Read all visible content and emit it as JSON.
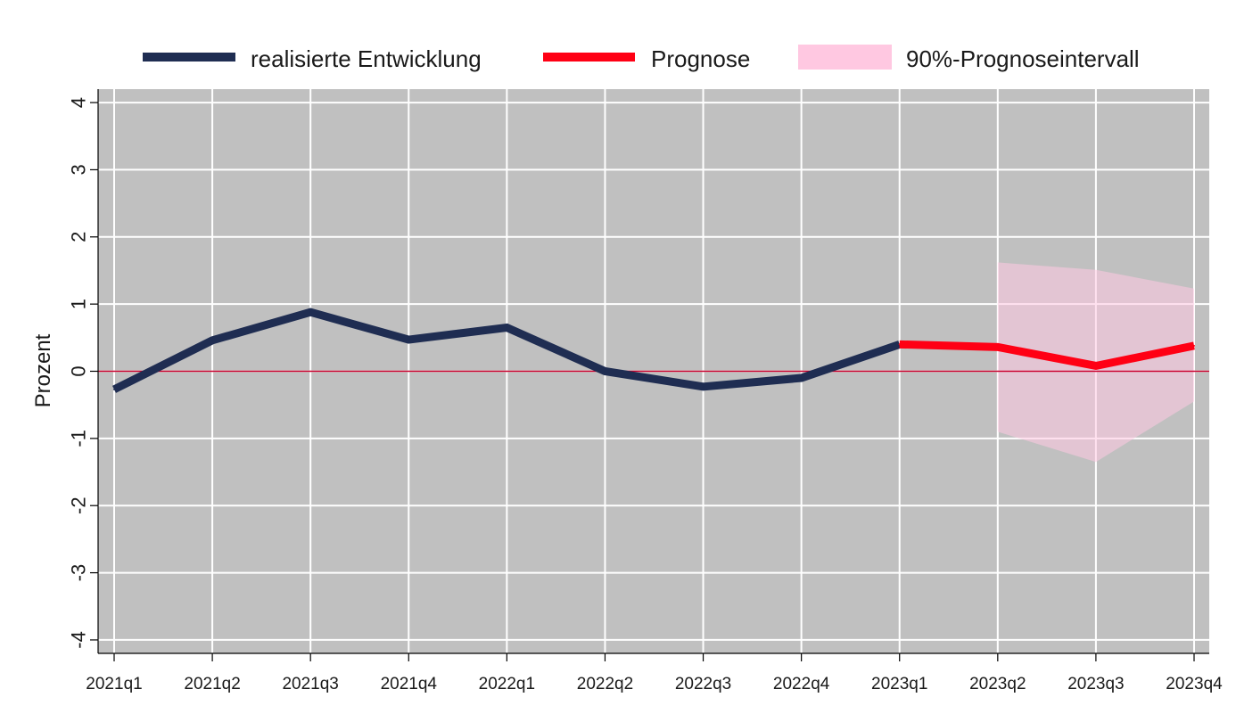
{
  "chart_data": {
    "type": "line",
    "title": "",
    "xlabel": "",
    "ylabel": "Prozent",
    "ylim": [
      -4.2,
      4.2
    ],
    "yticks": [
      -4,
      -3,
      -2,
      -1,
      0,
      1,
      2,
      3,
      4
    ],
    "ytick_labels": [
      "-4",
      "-3",
      "-2",
      "-1",
      "0",
      "1",
      "2",
      "3",
      "4"
    ],
    "categories": [
      "2021q1",
      "2021q2",
      "2021q3",
      "2021q4",
      "2022q1",
      "2022q2",
      "2022q3",
      "2022q4",
      "2023q1",
      "2023q2",
      "2023q3",
      "2023q4"
    ],
    "grid": true,
    "legend_position": "top",
    "series": [
      {
        "name": "realisierte Entwicklung",
        "color": "#1f2d52",
        "x": [
          "2021q1",
          "2021q2",
          "2021q3",
          "2021q4",
          "2022q1",
          "2022q2",
          "2022q3",
          "2022q4",
          "2023q1"
        ],
        "values": [
          -0.27,
          0.46,
          0.88,
          0.47,
          0.65,
          0.0,
          -0.23,
          -0.1,
          0.4
        ]
      },
      {
        "name": "Prognose",
        "color": "#ff0014",
        "x": [
          "2023q1",
          "2023q2",
          "2023q3",
          "2023q4"
        ],
        "values": [
          0.4,
          0.36,
          0.08,
          0.38
        ]
      }
    ],
    "interval": {
      "name": "90%-Prognoseintervall",
      "color": "#ffc8e1",
      "x": [
        "2023q2",
        "2023q3",
        "2023q4"
      ],
      "lower": [
        -0.9,
        -1.35,
        -0.45
      ],
      "upper": [
        1.62,
        1.51,
        1.23
      ]
    },
    "zero_line": {
      "value": 0,
      "color": "#c8002d"
    },
    "colors": {
      "plot_background": "#c0c0c0",
      "grid": "#ffffff",
      "page_background": "#ffffff"
    }
  }
}
